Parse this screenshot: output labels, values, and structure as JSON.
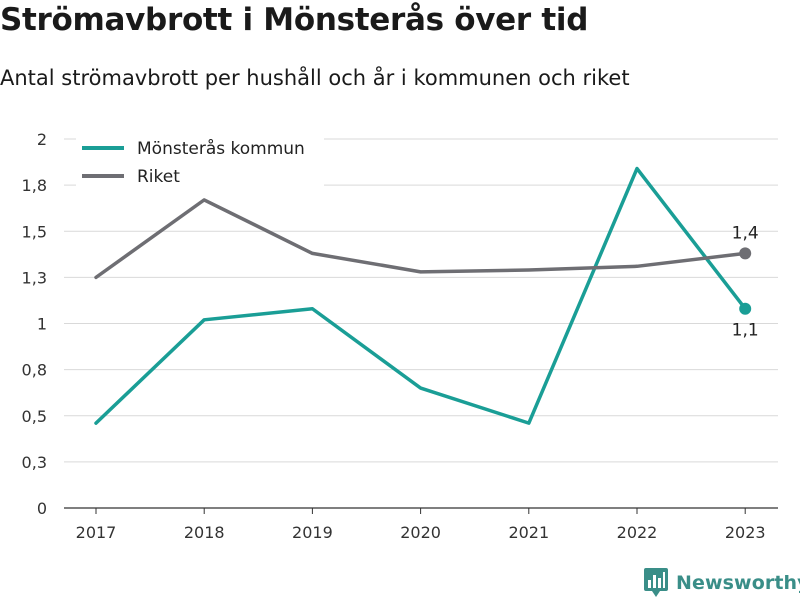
{
  "title": "Strömavbrott i Mönsterås över tid",
  "subtitle": "Antal strömavbrott per hushåll och år i kommunen och riket",
  "brand": "Newsworthy",
  "chart_data": {
    "type": "line",
    "x": [
      "2017",
      "2018",
      "2019",
      "2020",
      "2021",
      "2022",
      "2023"
    ],
    "y_ticks": [
      {
        "value": 0,
        "label": "0"
      },
      {
        "value": 0.25,
        "label": "0,3"
      },
      {
        "value": 0.5,
        "label": "0,5"
      },
      {
        "value": 0.75,
        "label": "0,8"
      },
      {
        "value": 1.0,
        "label": "1"
      },
      {
        "value": 1.25,
        "label": "1,3"
      },
      {
        "value": 1.5,
        "label": "1,5"
      },
      {
        "value": 1.75,
        "label": "1,8"
      },
      {
        "value": 2.0,
        "label": "2"
      }
    ],
    "ylim": [
      0,
      2
    ],
    "grid": true,
    "legend_position": "top-left",
    "series": [
      {
        "name": "Mönsterås kommun",
        "color": "#1a9e96",
        "values": [
          0.46,
          1.02,
          1.08,
          0.65,
          0.46,
          1.84,
          1.08
        ],
        "end_label": "1,1"
      },
      {
        "name": "Riket",
        "color": "#6e6e73",
        "values": [
          1.25,
          1.67,
          1.38,
          1.28,
          1.29,
          1.31,
          1.38
        ],
        "end_label": "1,4"
      }
    ]
  }
}
